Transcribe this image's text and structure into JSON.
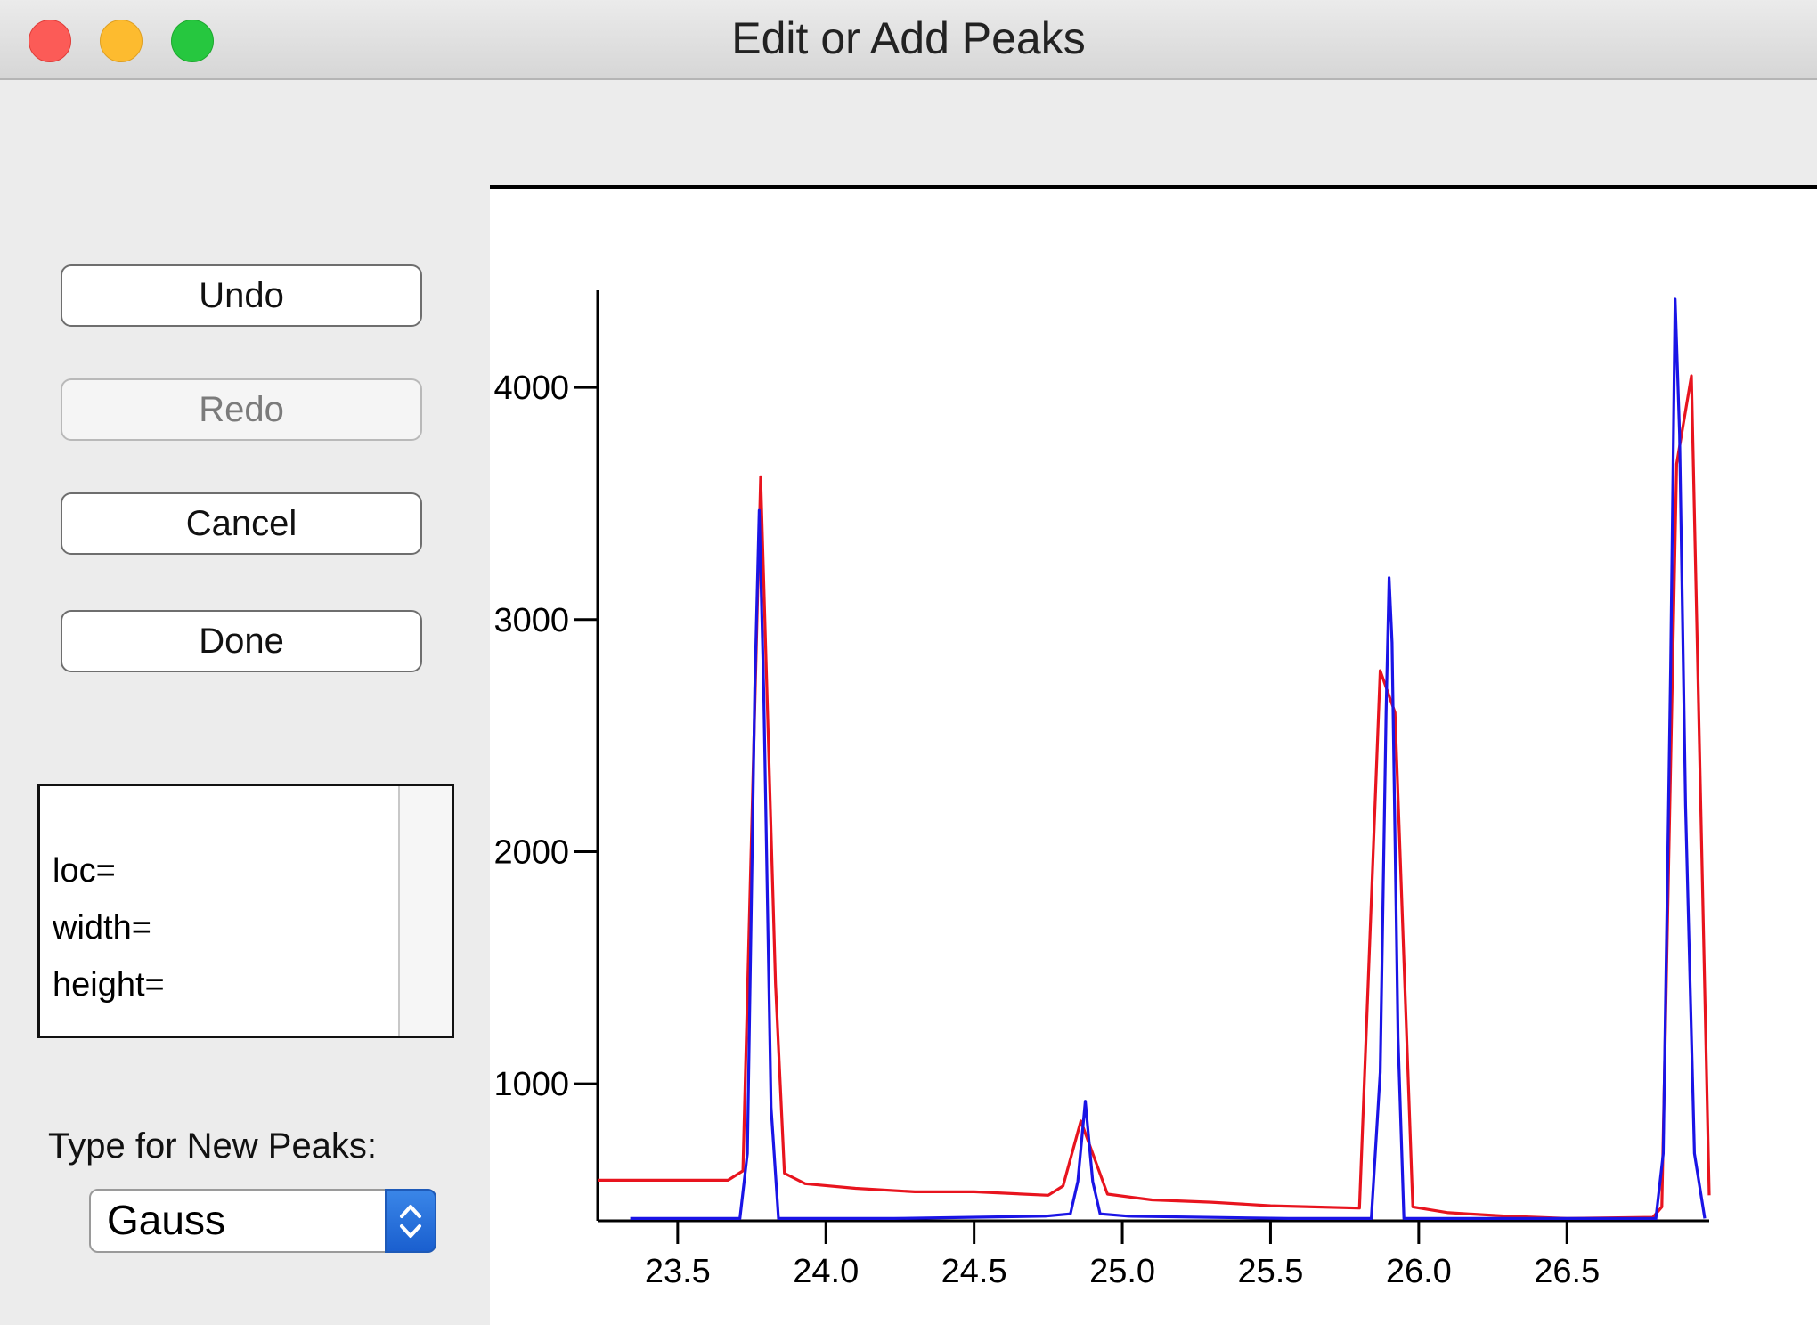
{
  "window": {
    "title": "Edit or Add Peaks"
  },
  "buttons": {
    "undo": "Undo",
    "redo": "Redo",
    "cancel": "Cancel",
    "done": "Done"
  },
  "info": {
    "loc": "loc=",
    "width": "width=",
    "height": "height="
  },
  "peak_type": {
    "label": "Type for New Peaks:",
    "selected": "Gauss"
  },
  "colors": {
    "data_series": "#e8141e",
    "fit_series": "#1a14e6",
    "select_accent": "#2a70dc"
  },
  "chart_data": {
    "type": "line",
    "title": "",
    "xlabel": "",
    "ylabel": "",
    "xlim": [
      23.23,
      26.98
    ],
    "ylim": [
      410,
      4380
    ],
    "x_ticks": [
      23.5,
      24.0,
      24.5,
      25.0,
      25.5,
      26.0,
      26.5
    ],
    "x_tick_labels": [
      "23.5",
      "24.0",
      "24.5",
      "25.0",
      "25.5",
      "26.0",
      "26.5"
    ],
    "y_ticks": [
      1000,
      2000,
      3000,
      4000
    ],
    "y_tick_labels": [
      "1000",
      "2000",
      "3000",
      "4000"
    ],
    "grid": false,
    "series": [
      {
        "color": "#e8141e",
        "points": [
          [
            23.23,
            585
          ],
          [
            23.67,
            585
          ],
          [
            23.72,
            625
          ],
          [
            23.78,
            3615
          ],
          [
            23.83,
            1430
          ],
          [
            23.86,
            615
          ],
          [
            23.93,
            570
          ],
          [
            24.1,
            550
          ],
          [
            24.3,
            535
          ],
          [
            24.5,
            535
          ],
          [
            24.75,
            520
          ],
          [
            24.8,
            560
          ],
          [
            24.86,
            840
          ],
          [
            24.9,
            700
          ],
          [
            24.95,
            525
          ],
          [
            25.1,
            500
          ],
          [
            25.3,
            490
          ],
          [
            25.5,
            475
          ],
          [
            25.8,
            465
          ],
          [
            25.87,
            2780
          ],
          [
            25.92,
            2600
          ],
          [
            25.98,
            470
          ],
          [
            26.1,
            445
          ],
          [
            26.3,
            430
          ],
          [
            26.5,
            420
          ],
          [
            26.79,
            425
          ],
          [
            26.82,
            470
          ],
          [
            26.87,
            3670
          ],
          [
            26.92,
            4050
          ],
          [
            26.98,
            520
          ]
        ]
      },
      {
        "color": "#1a14e6",
        "points": [
          [
            23.34,
            420
          ],
          [
            23.71,
            420
          ],
          [
            23.735,
            700
          ],
          [
            23.76,
            2700
          ],
          [
            23.775,
            3470
          ],
          [
            23.79,
            2700
          ],
          [
            23.815,
            900
          ],
          [
            23.84,
            420
          ],
          [
            24.23,
            420
          ],
          [
            24.74,
            430
          ],
          [
            24.825,
            440
          ],
          [
            24.85,
            580
          ],
          [
            24.875,
            925
          ],
          [
            24.9,
            580
          ],
          [
            24.925,
            440
          ],
          [
            25.02,
            430
          ],
          [
            25.56,
            420
          ],
          [
            25.84,
            420
          ],
          [
            25.87,
            1050
          ],
          [
            25.89,
            2600
          ],
          [
            25.9,
            3180
          ],
          [
            25.91,
            2900
          ],
          [
            25.93,
            1200
          ],
          [
            25.95,
            420
          ],
          [
            26.8,
            420
          ],
          [
            26.825,
            700
          ],
          [
            26.85,
            2800
          ],
          [
            26.865,
            4380
          ],
          [
            26.88,
            3800
          ],
          [
            26.9,
            2200
          ],
          [
            26.93,
            700
          ],
          [
            26.965,
            420
          ]
        ]
      }
    ]
  }
}
